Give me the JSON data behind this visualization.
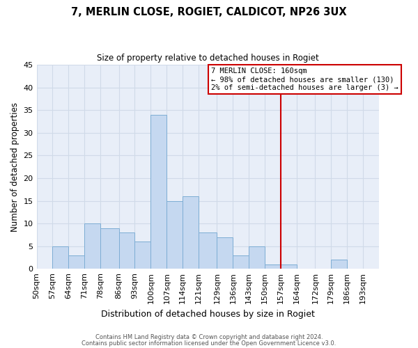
{
  "title": "7, MERLIN CLOSE, ROGIET, CALDICOT, NP26 3UX",
  "subtitle": "Size of property relative to detached houses in Rogiet",
  "xlabel": "Distribution of detached houses by size in Rogiet",
  "ylabel": "Number of detached properties",
  "bin_labels": [
    "50sqm",
    "57sqm",
    "64sqm",
    "71sqm",
    "78sqm",
    "86sqm",
    "93sqm",
    "100sqm",
    "107sqm",
    "114sqm",
    "121sqm",
    "129sqm",
    "136sqm",
    "143sqm",
    "150sqm",
    "157sqm",
    "164sqm",
    "172sqm",
    "179sqm",
    "186sqm",
    "193sqm"
  ],
  "bin_edges": [
    50,
    57,
    64,
    71,
    78,
    86,
    93,
    100,
    107,
    114,
    121,
    129,
    136,
    143,
    150,
    157,
    164,
    172,
    179,
    186,
    193,
    200
  ],
  "bar_values": [
    0,
    5,
    3,
    10,
    9,
    8,
    6,
    34,
    15,
    16,
    8,
    7,
    3,
    5,
    1,
    1,
    0,
    0,
    2,
    0,
    0
  ],
  "bar_color": "#c5d8f0",
  "bar_edge_color": "#7dadd4",
  "grid_color": "#d0dae8",
  "bg_color": "#e8eef8",
  "annotation_line_color": "#cc0000",
  "annotation_box_text": "7 MERLIN CLOSE: 160sqm\n← 98% of detached houses are smaller (130)\n2% of semi-detached houses are larger (3) →",
  "annotation_box_color": "#cc0000",
  "footnote1": "Contains HM Land Registry data © Crown copyright and database right 2024.",
  "footnote2": "Contains public sector information licensed under the Open Government Licence v3.0.",
  "ylim": [
    0,
    45
  ],
  "red_line_x": 157
}
